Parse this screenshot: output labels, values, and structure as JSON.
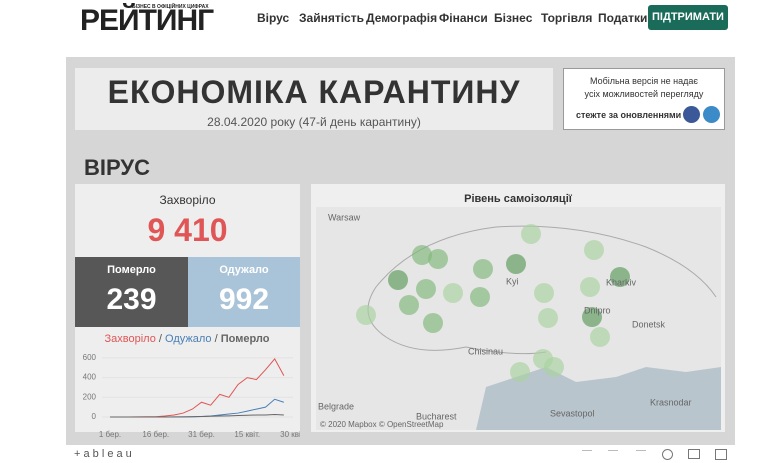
{
  "header": {
    "logo": "РЕЙТИНГ",
    "logo_tagline": "БІЗНЕС В ОФІЦІЙНИХ ЦИФРАХ",
    "nav": [
      "Вірус",
      "Зайнятість",
      "Демографія",
      "Фінанси",
      "Бізнес",
      "Торгівля",
      "Податки"
    ],
    "button": "ПІДТРИМАТИ"
  },
  "dashboard": {
    "title": "ЕКОНОМІКА КАРАНТИНУ",
    "date": "28.04.2020 року (47-й день карантину)",
    "notice": [
      "Мобільна версія не надає",
      "усіх можливостей перегляду",
      "стежте за оновленнями"
    ],
    "section": "ВІРУС",
    "stats": {
      "cases_label": "Захворіло",
      "cases": "9 410",
      "deaths_label": "Померло",
      "deaths": "239",
      "recovered_label": "Одужало",
      "recovered": "992"
    },
    "mini_chart": {
      "legend_separator": "/",
      "categories": [
        "1 бер.",
        null,
        null,
        null,
        null,
        "16 бер.",
        null,
        null,
        null,
        null,
        "31 бер.",
        null,
        null,
        null,
        null,
        "15 квіт.",
        null,
        null,
        null,
        null,
        "30 квіт."
      ],
      "ylim": [
        0,
        660
      ],
      "yticks": [
        0,
        200,
        400,
        600
      ],
      "series": [
        {
          "name": "Захворіло",
          "color": "#e05555",
          "values": [
            0,
            0,
            0,
            1,
            2,
            3,
            10,
            20,
            40,
            80,
            150,
            120,
            230,
            200,
            330,
            400,
            380,
            480,
            590,
            420,
            null
          ]
        },
        {
          "name": "Одужало",
          "color": "#4a7fb5",
          "values": [
            0,
            0,
            0,
            0,
            0,
            0,
            0,
            0,
            1,
            2,
            5,
            10,
            20,
            30,
            40,
            60,
            80,
            100,
            180,
            150,
            null
          ]
        },
        {
          "name": "Померло",
          "color": "#666666",
          "values": [
            0,
            0,
            0,
            0,
            0,
            0,
            0,
            1,
            1,
            2,
            5,
            8,
            10,
            12,
            15,
            18,
            20,
            20,
            25,
            20,
            null
          ]
        }
      ]
    },
    "map": {
      "title": "Рівень самоізоляції",
      "places": [
        "Warsaw",
        "Kyi",
        "Kharkiv",
        "Dnipro",
        "Donetsk",
        "Chisinau",
        "Belgrade",
        "Bucharest",
        "Sevastopol",
        "Krasnodar"
      ],
      "credit": "© 2020 Mapbox © OpenStreetMap"
    }
  },
  "footer": {
    "brand": "+ a b l e a u"
  }
}
